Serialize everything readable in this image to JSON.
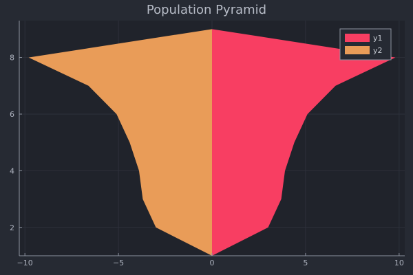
{
  "chart_data": {
    "type": "area",
    "title": "Population Pyramid",
    "xlabel": "",
    "ylabel": "",
    "xlim": [
      -10.3,
      10.3
    ],
    "ylim": [
      1.0,
      9.3
    ],
    "x_ticks": [
      -10,
      -5,
      0,
      5,
      10
    ],
    "x_tick_labels": [
      "−10",
      "−5",
      "0",
      "5",
      "10"
    ],
    "y_ticks": [
      2,
      4,
      6,
      8
    ],
    "y_tick_labels": [
      "2",
      "4",
      "6",
      "8"
    ],
    "grid": true,
    "legend_position": "top-right",
    "series": [
      {
        "name": "y1",
        "color": "#f83e62",
        "points": [
          {
            "x": 0.0,
            "y": 1.0
          },
          {
            "x": 3.0,
            "y": 2.0
          },
          {
            "x": 3.7,
            "y": 3.0
          },
          {
            "x": 3.9,
            "y": 4.0
          },
          {
            "x": 4.4,
            "y": 5.0
          },
          {
            "x": 5.1,
            "y": 6.0
          },
          {
            "x": 6.6,
            "y": 7.0
          },
          {
            "x": 9.8,
            "y": 8.0
          },
          {
            "x": 0.0,
            "y": 9.0
          }
        ]
      },
      {
        "name": "y2",
        "color": "#e99c58",
        "points": [
          {
            "x": 0.0,
            "y": 1.0
          },
          {
            "x": -3.0,
            "y": 2.0
          },
          {
            "x": -3.7,
            "y": 3.0
          },
          {
            "x": -3.9,
            "y": 4.0
          },
          {
            "x": -4.4,
            "y": 5.0
          },
          {
            "x": -5.1,
            "y": 6.0
          },
          {
            "x": -6.6,
            "y": 7.0
          },
          {
            "x": -9.8,
            "y": 8.0
          },
          {
            "x": 0.0,
            "y": 9.0
          }
        ]
      }
    ]
  }
}
